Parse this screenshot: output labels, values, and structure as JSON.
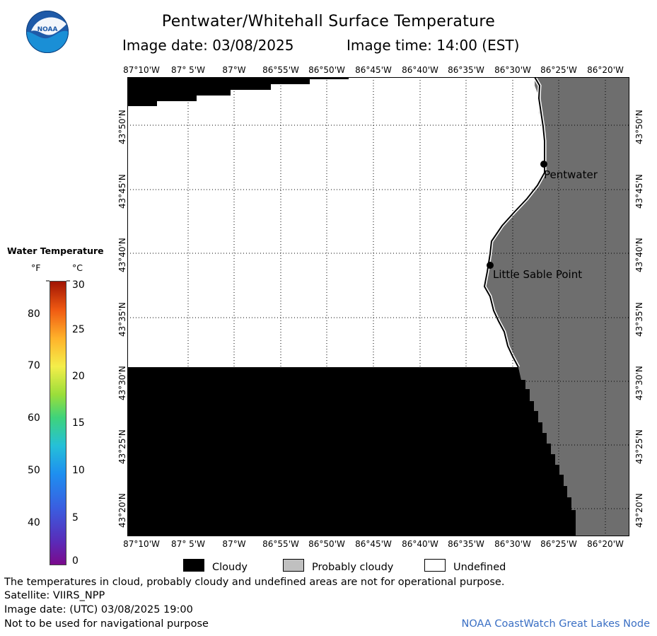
{
  "header": {
    "title": "Pentwater/Whitehall Surface Temperature",
    "subtitle_date": "Image date: 03/08/2025",
    "subtitle_time": "Image time: 14:00 (EST)",
    "logo_text": "NOAA"
  },
  "map": {
    "lon_labels": [
      "87°10'W",
      "87° 5'W",
      "87°W",
      "86°55'W",
      "86°50'W",
      "86°45'W",
      "86°40'W",
      "86°35'W",
      "86°30'W",
      "86°25'W",
      "86°20'W"
    ],
    "lat_labels": [
      "43°50'N",
      "43°45'N",
      "43°40'N",
      "43°35'N",
      "43°30'N",
      "43°25'N",
      "43°20'N"
    ],
    "places": [
      {
        "name": "Pentwater"
      },
      {
        "name": "Little Sable Point"
      }
    ],
    "colors": {
      "cloudy": "#000000",
      "land": "#6e6e6e",
      "undefined": "#ffffff"
    }
  },
  "colorbar": {
    "title": "Water Temperature",
    "unit_f": "°F",
    "unit_c": "°C",
    "f_ticks": [
      "80",
      "70",
      "60",
      "50",
      "40"
    ],
    "c_ticks": [
      "30",
      "25",
      "20",
      "15",
      "10",
      "5",
      "0"
    ]
  },
  "legend": {
    "cloudy": "Cloudy",
    "probably_cloudy": "Probably cloudy",
    "undefined": "Undefined",
    "colors": {
      "cloudy": "#000000",
      "probably_cloudy": "#c0c0c0",
      "undefined": "#ffffff"
    }
  },
  "footer": {
    "line1": "The temperatures in cloud, probably cloudy and undefined areas are not for operational purpose.",
    "line2": "Satellite: VIIRS_NPP",
    "line3": "Image date: (UTC) 03/08/2025  19:00",
    "line4": "Not to be used for navigational purpose",
    "credit": "NOAA CoastWatch Great Lakes Node"
  }
}
